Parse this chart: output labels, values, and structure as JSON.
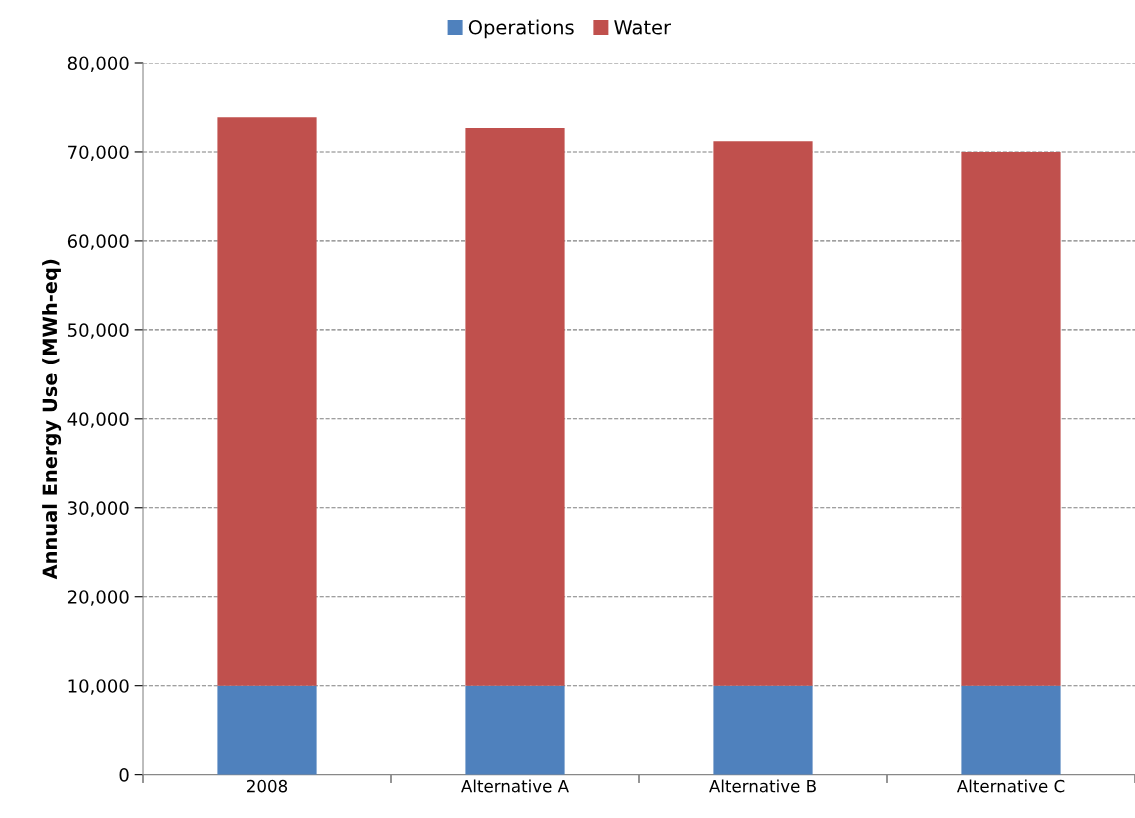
{
  "chart_data": {
    "type": "bar",
    "stacked": true,
    "ylabel": "Annual Energy Use (MWh-eq)",
    "categories": [
      "2008",
      "Alternative A",
      "Alternative B",
      "Alternative C"
    ],
    "series": [
      {
        "name": "Operations",
        "color": "#4f81bd",
        "values": [
          10000,
          10000,
          10000,
          10000
        ]
      },
      {
        "name": "Water",
        "color": "#c0504d",
        "values": [
          63900,
          62700,
          61200,
          60000
        ]
      }
    ],
    "ylim": [
      0,
      80000
    ],
    "yticks": [
      {
        "value": 0,
        "label": "0"
      },
      {
        "value": 10000,
        "label": "10,000"
      },
      {
        "value": 20000,
        "label": "20,000"
      },
      {
        "value": 30000,
        "label": "30,000"
      },
      {
        "value": 40000,
        "label": "40,000"
      },
      {
        "value": 50000,
        "label": "50,000"
      },
      {
        "value": 60000,
        "label": "60,000"
      },
      {
        "value": 70000,
        "label": "70,000"
      },
      {
        "value": 80000,
        "label": "80,000"
      }
    ],
    "grid": "y",
    "legend": "top"
  }
}
